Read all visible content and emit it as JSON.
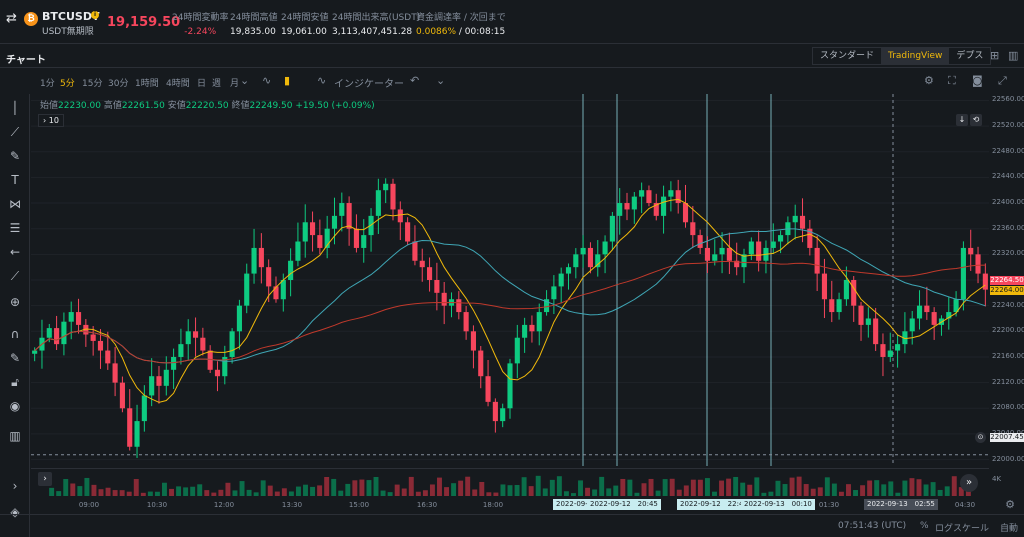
{
  "header": {
    "symbol": "BTCUSDT",
    "symbol_sub": "USDT無期限",
    "last_price": "19,159.50",
    "stats": [
      {
        "label": "24時間変動率",
        "value": "-2.24%",
        "color": "red"
      },
      {
        "label": "24時間高値",
        "value": "19,835.00",
        "color": "white"
      },
      {
        "label": "24時間安値",
        "value": "19,061.00",
        "color": "white"
      },
      {
        "label": "24時間出来高(USDT)",
        "value": "3,113,407,451.28",
        "color": "white"
      },
      {
        "label": "資金調達率 / 次回まで",
        "value": "0.0086%",
        "value2": " / 00:08:15",
        "color": "yellow"
      }
    ]
  },
  "chart_header": {
    "title": "チャート",
    "tabs": [
      "スタンダード",
      "TradingView",
      "デプス"
    ],
    "active_tab": "TradingView"
  },
  "toolbar": {
    "intervals": [
      "1分",
      "5分",
      "15分",
      "30分",
      "1時間",
      "4時間",
      "日",
      "週",
      "月"
    ],
    "active_interval": "5分",
    "indicators_label": "インジケーター"
  },
  "ohlc": {
    "open_label": "始値",
    "open": "22230.00",
    "high_label": "高値",
    "high": "22261.50",
    "low_label": "安値",
    "low": "22220.50",
    "close_label": "終値",
    "close": "22249.50",
    "change": "+19.50 (+0.09%)"
  },
  "indicator_box": "10",
  "price_axis": {
    "ticks": [
      "22560.00",
      "22520.00",
      "22480.00",
      "22440.00",
      "22400.00",
      "22360.00",
      "22320.00",
      "22280.00",
      "22240.00",
      "22200.00",
      "22160.00",
      "22120.00",
      "22080.00",
      "22040.00",
      "22000.00"
    ],
    "current_tag": "22264.50",
    "ma_tag": "22264.00",
    "crosshair_tag": "22007.45",
    "vol_label": "4K"
  },
  "time_axis": {
    "labels": [
      "09:00",
      "10:30",
      "12:00",
      "13:30",
      "15:00",
      "16:30",
      "18:00",
      "01:30",
      "04:30"
    ],
    "tags": [
      "2022-09-1:",
      "2022-09-12　20:45",
      "2022-09-12　22:45",
      "2022-09-13　00:10"
    ],
    "crosshair_tag": "2022-09-13　02:55"
  },
  "bottom": {
    "clock": "07:51:43 (UTC)",
    "percent": "%",
    "log": "ログスケール",
    "auto": "自動"
  },
  "colors": {
    "up": "#0ecb81",
    "down": "#f6465d",
    "accent": "#f0b90b"
  },
  "chart_data": {
    "type": "candlestick",
    "y_range": [
      21990,
      22570
    ],
    "close_series": [
      22170,
      22190,
      22205,
      22180,
      22215,
      22230,
      22210,
      22195,
      22185,
      22170,
      22150,
      22120,
      22080,
      22020,
      22060,
      22100,
      22130,
      22115,
      22140,
      22160,
      22180,
      22200,
      22190,
      22170,
      22140,
      22130,
      22160,
      22200,
      22240,
      22290,
      22330,
      22300,
      22270,
      22250,
      22280,
      22310,
      22340,
      22370,
      22350,
      22330,
      22360,
      22380,
      22400,
      22360,
      22330,
      22350,
      22380,
      22420,
      22430,
      22390,
      22370,
      22340,
      22310,
      22300,
      22280,
      22260,
      22240,
      22250,
      22230,
      22200,
      22170,
      22130,
      22090,
      22060,
      22080,
      22150,
      22190,
      22210,
      22200,
      22230,
      22250,
      22270,
      22290,
      22300,
      22320,
      22330,
      22300,
      22320,
      22340,
      22380,
      22400,
      22390,
      22410,
      22420,
      22400,
      22380,
      22410,
      22420,
      22400,
      22370,
      22350,
      22330,
      22310,
      22320,
      22330,
      22310,
      22300,
      22320,
      22340,
      22310,
      22330,
      22340,
      22350,
      22370,
      22380,
      22360,
      22330,
      22290,
      22250,
      22230,
      22250,
      22280,
      22240,
      22210,
      22220,
      22180,
      22160,
      22170,
      22180,
      22200,
      22220,
      22240,
      22230,
      22210,
      22220,
      22230,
      22250,
      22330,
      22320,
      22290,
      22265
    ]
  }
}
